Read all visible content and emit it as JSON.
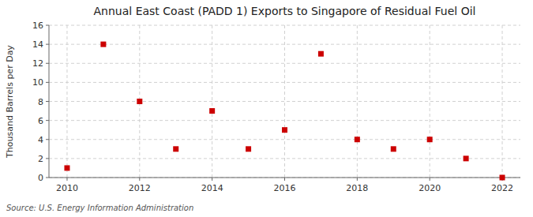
{
  "chart_data": {
    "type": "scatter",
    "title": "Annual East Coast (PADD 1) Exports to Singapore of Residual Fuel Oil",
    "ylabel": "Thousand Barrels per Day",
    "source": "Source: U.S. Energy Information Administration",
    "x": [
      2010,
      2011,
      2012,
      2013,
      2014,
      2015,
      2016,
      2017,
      2018,
      2019,
      2020,
      2021,
      2022
    ],
    "values": [
      1,
      14,
      8,
      3,
      7,
      3,
      5,
      13,
      4,
      3,
      4,
      2,
      0
    ],
    "xlim": [
      2009.5,
      2022.5
    ],
    "ylim": [
      0,
      16
    ],
    "xticks": [
      2010,
      2012,
      2014,
      2016,
      2018,
      2020,
      2022
    ],
    "yticks": [
      0,
      2,
      4,
      6,
      8,
      10,
      12,
      14,
      16
    ],
    "color": "#cc0000",
    "marker": "square",
    "grid": true
  }
}
